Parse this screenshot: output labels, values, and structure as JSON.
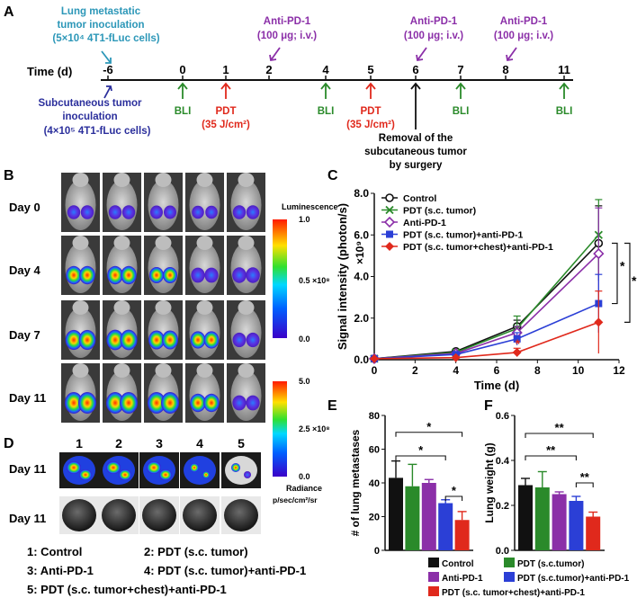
{
  "panel_labels": {
    "a": "A",
    "b": "B",
    "c": "C",
    "d": "D",
    "e": "E",
    "f": "F"
  },
  "timeline": {
    "axis_label": "Time (d)",
    "ticks": [
      {
        "label": "-6",
        "day": -6
      },
      {
        "label": "0",
        "day": 0
      },
      {
        "label": "1",
        "day": 1
      },
      {
        "label": "2",
        "day": 2
      },
      {
        "label": "4",
        "day": 4
      },
      {
        "label": "5",
        "day": 5
      },
      {
        "label": "6",
        "day": 6
      },
      {
        "label": "7",
        "day": 7
      },
      {
        "label": "8",
        "day": 8
      },
      {
        "label": "11",
        "day": 11
      }
    ],
    "lung_inoculation": [
      "Lung metastatic",
      "tumor inoculation",
      "(5×10⁴ 4T1-fLuc cells)"
    ],
    "subcutaneous_inoculation": [
      "Subcutaneous tumor",
      "inoculation",
      "(4×10⁵ 4T1-fLuc cells)"
    ],
    "anti_pd1": {
      "title": "Anti-PD-1",
      "dose": "(100 μg; i.v.)",
      "days": [
        2,
        6,
        8
      ]
    },
    "bli": {
      "label": "BLI",
      "days": [
        0,
        4,
        7,
        11
      ]
    },
    "pdt": {
      "title": "PDT",
      "dose": "(35 J/cm²)",
      "days": [
        1,
        5
      ]
    },
    "removal": [
      "Removal of the",
      "subcutaneous tumor",
      "by surgery"
    ],
    "colors": {
      "teal": "#2c97b8",
      "navy": "#2b2f9c",
      "purple": "#8b2fa8",
      "green": "#2a8a2a",
      "red": "#e0291c",
      "black": "#111111"
    }
  },
  "panel_b": {
    "days": [
      "Day 0",
      "Day 4",
      "Day 7",
      "Day 11"
    ],
    "scale1": {
      "title": "Luminescence",
      "ticks": [
        "1.0",
        "0.5 ×10⁸",
        "0.0"
      ]
    },
    "scale2": {
      "ticks": [
        "5.0",
        "2.5 ×10⁸",
        "0.0"
      ],
      "title": "Radiance",
      "unit": "p/sec/cm²/sr"
    }
  },
  "panel_d": {
    "columns": [
      "1",
      "2",
      "3",
      "4",
      "5"
    ],
    "rows": [
      "Day 11",
      "Day 11"
    ],
    "legend": [
      [
        "1: Control",
        "2: PDT (s.c. tumor)"
      ],
      [
        "3: Anti-PD-1",
        "4: PDT (s.c. tumor)+anti-PD-1"
      ],
      [
        "5: PDT (s.c. tumor+chest)+anti-PD-1"
      ]
    ]
  },
  "chart_data": [
    {
      "id": "C",
      "type": "line",
      "title": "",
      "xlabel": "Time (d)",
      "ylabel": "Signal intensity (photon/s)",
      "y_multiplier": "×10⁹",
      "xlim": [
        0,
        12
      ],
      "ylim": [
        0,
        8
      ],
      "xticks": [
        0,
        2,
        4,
        6,
        8,
        10,
        12
      ],
      "yticks": [
        0.0,
        2.0,
        4.0,
        6.0,
        8.0
      ],
      "x": [
        0,
        4,
        7,
        11
      ],
      "legend_position": "top-left",
      "series": [
        {
          "name": "Control",
          "color": "#111111",
          "marker": "circle-open",
          "values": [
            0.05,
            0.4,
            1.6,
            5.6
          ],
          "errors": [
            0.02,
            0.1,
            0.3,
            1.8
          ]
        },
        {
          "name": "PDT (s.c. tumor)",
          "color": "#2a8a2a",
          "marker": "x",
          "values": [
            0.05,
            0.35,
            1.5,
            6.0
          ],
          "errors": [
            0.02,
            0.1,
            0.6,
            1.7
          ]
        },
        {
          "name": "Anti-PD-1",
          "color": "#8b2fa8",
          "marker": "diamond-open",
          "values": [
            0.05,
            0.3,
            1.3,
            5.1
          ],
          "errors": [
            0.02,
            0.1,
            0.3,
            2.2
          ]
        },
        {
          "name": "PDT (s.c. tumor)+anti-PD-1",
          "color": "#2b3fd6",
          "marker": "square",
          "values": [
            0.05,
            0.25,
            1.0,
            2.7
          ],
          "errors": [
            0.02,
            0.1,
            0.3,
            1.4
          ]
        },
        {
          "name": "PDT (s.c. tumor+chest)+anti-PD-1",
          "color": "#e0291c",
          "marker": "diamond",
          "values": [
            0.05,
            0.1,
            0.35,
            1.8
          ],
          "errors": [
            0.02,
            0.05,
            0.2,
            1.5
          ]
        }
      ],
      "annotations": [
        "*",
        "*",
        "*"
      ]
    },
    {
      "id": "E",
      "type": "bar",
      "title": "",
      "xlabel": "",
      "ylabel": "# of lung metastases",
      "ylim": [
        0,
        80
      ],
      "yticks": [
        0,
        20,
        40,
        60,
        80
      ],
      "categories": [
        "Control",
        "PDT (s.c.tumor)",
        "Anti-PD-1",
        "PDT (s.c.tumor)+anti-PD-1",
        "PDT (s.c. tumor+chest)+anti-PD-1"
      ],
      "values": [
        43,
        38,
        40,
        28,
        18
      ],
      "errors": [
        10,
        13,
        2,
        2,
        5
      ],
      "colors": [
        "#111111",
        "#2a8a2a",
        "#8b2fa8",
        "#2b3fd6",
        "#e0291c"
      ],
      "significance": [
        "*",
        "*",
        "*"
      ]
    },
    {
      "id": "F",
      "type": "bar",
      "title": "",
      "xlabel": "",
      "ylabel": "Lung weight (g)",
      "ylim": [
        0,
        0.6
      ],
      "yticks": [
        "0.0",
        "0.2",
        "0.4",
        "0.6"
      ],
      "categories": [
        "Control",
        "PDT (s.c.tumor)",
        "Anti-PD-1",
        "PDT (s.c.tumor)+anti-PD-1",
        "PDT (s.c. tumor+chest)+anti-PD-1"
      ],
      "values": [
        0.29,
        0.28,
        0.25,
        0.22,
        0.15
      ],
      "errors": [
        0.03,
        0.07,
        0.01,
        0.02,
        0.02
      ],
      "colors": [
        "#111111",
        "#2a8a2a",
        "#8b2fa8",
        "#2b3fd6",
        "#e0291c"
      ],
      "significance": [
        "**",
        "**",
        "**"
      ]
    }
  ],
  "bar_legend": [
    {
      "label": "Control",
      "color": "#111111"
    },
    {
      "label": "PDT (s.c.tumor)",
      "color": "#2a8a2a"
    },
    {
      "label": "Anti-PD-1",
      "color": "#8b2fa8"
    },
    {
      "label": "PDT (s.c.tumor)+anti-PD-1",
      "color": "#2b3fd6"
    },
    {
      "label": "PDT (s.c. tumor+chest)+anti-PD-1",
      "color": "#e0291c"
    }
  ]
}
